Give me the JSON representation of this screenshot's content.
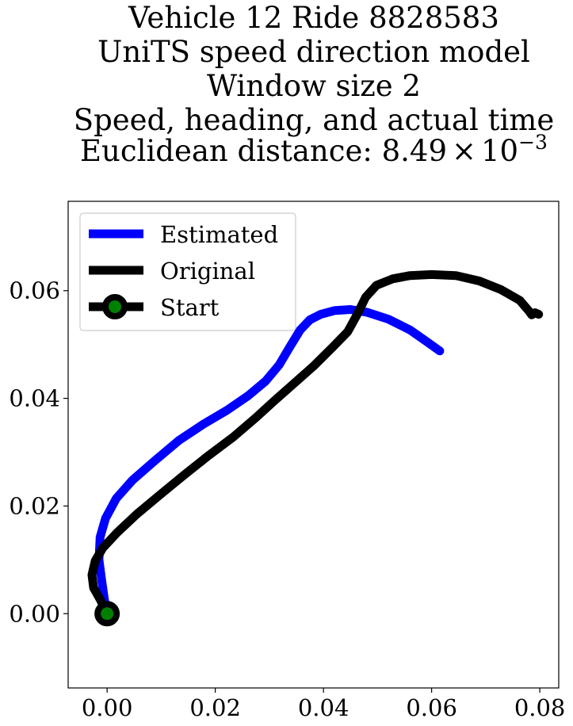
{
  "chart_data": {
    "type": "line",
    "title_lines": [
      "Vehicle 12 Ride 8828583",
      "UniTS speed direction model",
      "Window size 2",
      "Speed, heading, and actual time"
    ],
    "title_distance_label": "Euclidean distance: 8.49",
    "title_distance_mult": "×",
    "title_distance_base": "10",
    "title_distance_exp": "−3",
    "xlim": [
      -0.0072,
      0.0835
    ],
    "ylim": [
      -0.0138,
      0.0766
    ],
    "xticks": [
      0.0,
      0.02,
      0.04,
      0.06,
      0.08
    ],
    "xtick_labels": [
      "0.00",
      "0.02",
      "0.04",
      "0.06",
      "0.08"
    ],
    "yticks": [
      0.0,
      0.02,
      0.04,
      0.06
    ],
    "ytick_labels": [
      "0.00",
      "0.02",
      "0.04",
      "0.06"
    ],
    "grid": false,
    "legend_position": "top-left",
    "series": [
      {
        "name": "Estimated",
        "color": "#0000ff",
        "x": [
          0.0,
          -0.0005,
          -0.001,
          -0.0015,
          -0.0013,
          -0.0003,
          0.0017,
          0.0047,
          0.0088,
          0.0133,
          0.0178,
          0.0222,
          0.0261,
          0.0293,
          0.0318,
          0.0337,
          0.0357,
          0.0375,
          0.0395,
          0.042,
          0.045,
          0.048,
          0.052,
          0.056,
          0.059,
          0.0615
        ],
        "y": [
          0.0,
          0.0027,
          0.0062,
          0.01,
          0.0142,
          0.0177,
          0.0214,
          0.0248,
          0.0284,
          0.0322,
          0.0352,
          0.0378,
          0.0405,
          0.0432,
          0.0462,
          0.0494,
          0.0527,
          0.0546,
          0.0556,
          0.0563,
          0.0565,
          0.056,
          0.0547,
          0.0527,
          0.0506,
          0.0488
        ]
      },
      {
        "name": "Original",
        "color": "#000000",
        "x": [
          0.0,
          -0.0012,
          -0.0025,
          -0.0028,
          -0.0022,
          -0.0008,
          0.0018,
          0.0055,
          0.0098,
          0.0143,
          0.0188,
          0.0233,
          0.0275,
          0.0312,
          0.0347,
          0.0382,
          0.0418,
          0.0445,
          0.0462,
          0.0478,
          0.0498,
          0.0528,
          0.056,
          0.06,
          0.0645,
          0.0688,
          0.0728,
          0.0763,
          0.078,
          0.0785,
          0.0791,
          0.0798
        ],
        "y": [
          0.0,
          0.0025,
          0.0048,
          0.0072,
          0.0098,
          0.0122,
          0.015,
          0.0185,
          0.0221,
          0.0258,
          0.0294,
          0.0328,
          0.0364,
          0.0398,
          0.0429,
          0.046,
          0.0496,
          0.0524,
          0.0555,
          0.0588,
          0.061,
          0.0622,
          0.0628,
          0.063,
          0.0628,
          0.0618,
          0.0602,
          0.0582,
          0.0562,
          0.0555,
          0.0559,
          0.0556
        ]
      }
    ],
    "start_marker": {
      "name": "Start",
      "x": 0.0,
      "y": 0.0,
      "edge_color": "#000000",
      "face_color": "#008000"
    }
  }
}
